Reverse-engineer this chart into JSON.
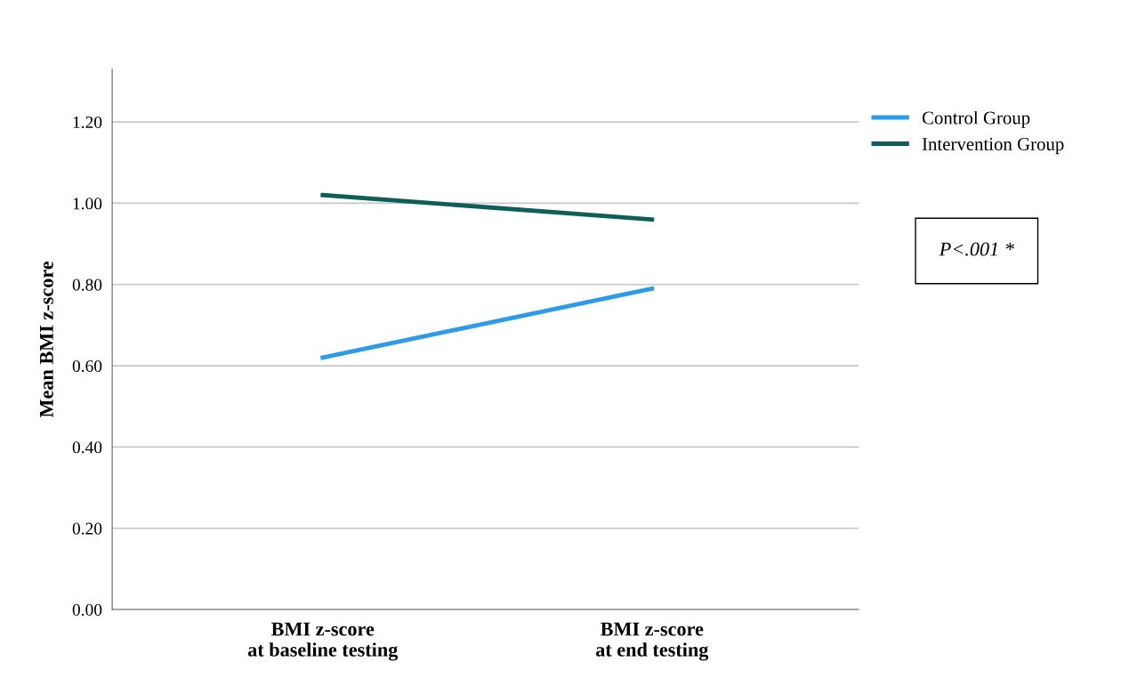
{
  "chart_data": {
    "type": "line",
    "ylabel": "Mean BMI z-score",
    "categories": [
      "BMI z-score\nat baseline testing",
      "BMI z-score\nat end testing"
    ],
    "series": [
      {
        "name": "Control Group",
        "color": "#2f9be8",
        "values": [
          0.62,
          0.79
        ]
      },
      {
        "name": "Intervention Group",
        "color": "#0f5e5a",
        "values": [
          1.02,
          0.96
        ]
      }
    ],
    "ylim": [
      0,
      1.33
    ],
    "yticks": [
      {
        "value": 0,
        "label": "0.00"
      },
      {
        "value": 0.2,
        "label": "0.20"
      },
      {
        "value": 0.4,
        "label": "0.40"
      },
      {
        "value": 0.6,
        "label": "0.60"
      },
      {
        "value": 0.8,
        "label": "0.80"
      },
      {
        "value": 1.0,
        "label": "1.00"
      },
      {
        "value": 1.2,
        "label": "1.20"
      }
    ],
    "grid": "y",
    "legend": "top right",
    "marker": "none",
    "line_style": "solid",
    "annotations": [
      "P<.001 *"
    ]
  }
}
